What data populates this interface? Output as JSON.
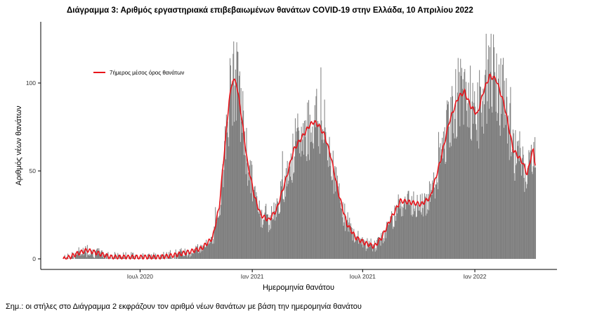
{
  "title": "Διάγραμμα 3: Αριθμός εργαστηριακά επιβεβαιωμένων θανάτων COVID-19 στην Ελλάδα, 10 Απριλίου 2022",
  "note": "Σημ.: οι στήλες στο Διάγραμμα 2 εκφράζουν τον αριθμό νέων θανάτων με βάση την ημερομηνία θανάτου",
  "colors": {
    "bars": "#7f7f7f",
    "line": "#e8141b",
    "axis": "#000000"
  },
  "chart_data": {
    "type": "bar",
    "xlabel": "Ημερομηνία θανάτου",
    "ylabel": "Αριθμός νέων θανάτων",
    "x_range": [
      "2020-02-26",
      "2022-04-10"
    ],
    "ylim": [
      0,
      130
    ],
    "y_ticks": [
      0,
      50,
      100
    ],
    "x_ticks": [
      {
        "date": "2020-07-01",
        "label": "Ιουλ 2020"
      },
      {
        "date": "2021-01-01",
        "label": "Ιαν 2021"
      },
      {
        "date": "2021-07-01",
        "label": "Ιουλ 2021"
      },
      {
        "date": "2022-01-01",
        "label": "Ιαν 2022"
      }
    ],
    "grid": false,
    "legend_position": "top-left",
    "series": [
      {
        "name": "",
        "kind": "bars",
        "description": "ημερήσιοι νέοι θάνατοι"
      },
      {
        "name": "7ήμερος μέσος όρος θανάτων",
        "kind": "line"
      }
    ],
    "trend_7day_avg": [
      [
        "2020-03-01",
        0
      ],
      [
        "2020-03-20",
        3
      ],
      [
        "2020-04-05",
        5
      ],
      [
        "2020-04-25",
        3
      ],
      [
        "2020-05-15",
        1
      ],
      [
        "2020-06-10",
        1
      ],
      [
        "2020-07-01",
        1
      ],
      [
        "2020-08-01",
        1
      ],
      [
        "2020-08-25",
        2
      ],
      [
        "2020-09-20",
        4
      ],
      [
        "2020-10-10",
        6
      ],
      [
        "2020-10-28",
        12
      ],
      [
        "2020-11-08",
        30
      ],
      [
        "2020-11-16",
        60
      ],
      [
        "2020-11-24",
        90
      ],
      [
        "2020-11-30",
        102
      ],
      [
        "2020-12-06",
        100
      ],
      [
        "2020-12-14",
        82
      ],
      [
        "2020-12-24",
        55
      ],
      [
        "2021-01-05",
        35
      ],
      [
        "2021-01-15",
        25
      ],
      [
        "2021-01-28",
        22
      ],
      [
        "2021-02-10",
        28
      ],
      [
        "2021-02-25",
        45
      ],
      [
        "2021-03-10",
        62
      ],
      [
        "2021-03-25",
        70
      ],
      [
        "2021-04-05",
        76
      ],
      [
        "2021-04-12",
        78
      ],
      [
        "2021-04-20",
        76
      ],
      [
        "2021-04-30",
        70
      ],
      [
        "2021-05-10",
        58
      ],
      [
        "2021-05-22",
        38
      ],
      [
        "2021-06-05",
        20
      ],
      [
        "2021-06-20",
        12
      ],
      [
        "2021-07-05",
        9
      ],
      [
        "2021-07-20",
        7
      ],
      [
        "2021-08-01",
        12
      ],
      [
        "2021-08-15",
        22
      ],
      [
        "2021-09-01",
        33
      ],
      [
        "2021-09-20",
        32
      ],
      [
        "2021-10-05",
        31
      ],
      [
        "2021-10-20",
        35
      ],
      [
        "2021-11-05",
        55
      ],
      [
        "2021-11-20",
        78
      ],
      [
        "2021-12-05",
        92
      ],
      [
        "2021-12-15",
        95
      ],
      [
        "2021-12-25",
        87
      ],
      [
        "2022-01-05",
        82
      ],
      [
        "2022-01-15",
        95
      ],
      [
        "2022-01-25",
        104
      ],
      [
        "2022-02-05",
        102
      ],
      [
        "2022-02-18",
        88
      ],
      [
        "2022-03-05",
        62
      ],
      [
        "2022-03-20",
        55
      ],
      [
        "2022-03-28",
        48
      ],
      [
        "2022-04-03",
        58
      ],
      [
        "2022-04-07",
        62
      ],
      [
        "2022-04-10",
        54
      ]
    ]
  }
}
